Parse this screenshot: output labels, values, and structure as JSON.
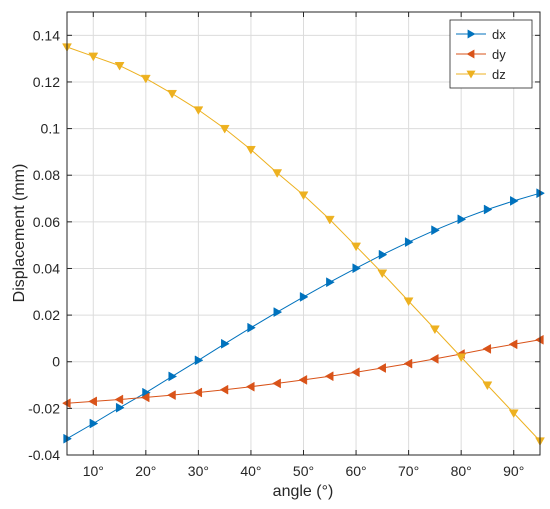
{
  "chart_data": {
    "type": "line",
    "title": "",
    "xlabel": "angle  (°)",
    "ylabel": "Displacement  (mm)",
    "xlim": [
      5,
      95
    ],
    "ylim": [
      -0.04,
      0.15
    ],
    "x_tick_values": [
      10,
      20,
      30,
      40,
      50,
      60,
      70,
      80,
      90
    ],
    "x_tick_labels": [
      "10°",
      "20°",
      "30°",
      "40°",
      "50°",
      "60°",
      "70°",
      "80°",
      "90°"
    ],
    "y_tick_values": [
      -0.04,
      -0.02,
      0,
      0.02,
      0.04,
      0.06,
      0.08,
      0.1,
      0.12,
      0.14
    ],
    "y_tick_labels": [
      "-0.04",
      "-0.02",
      "0",
      "0.02",
      "0.04",
      "0.06",
      "0.08",
      "0.1",
      "0.12",
      "0.14"
    ],
    "grid": true,
    "legend_position": "top-right",
    "x": [
      5,
      10,
      15,
      20,
      25,
      30,
      35,
      40,
      45,
      50,
      55,
      60,
      65,
      70,
      75,
      80,
      85,
      90,
      95
    ],
    "series": [
      {
        "name": "dx",
        "color": "#0072BD",
        "marker": "triangle-right",
        "values": [
          -0.033,
          -0.0265,
          -0.0197,
          -0.0133,
          -0.0063,
          0.0006,
          0.0077,
          0.0146,
          0.0213,
          0.0278,
          0.0341,
          0.0401,
          0.0459,
          0.0513,
          0.0564,
          0.0611,
          0.0653,
          0.069,
          0.0723
        ]
      },
      {
        "name": "dy",
        "color": "#D95319",
        "marker": "triangle-left",
        "values": [
          -0.0178,
          -0.017,
          -0.0162,
          -0.0153,
          -0.0143,
          -0.0132,
          -0.012,
          -0.0107,
          -0.0093,
          -0.0078,
          -0.0062,
          -0.0045,
          -0.0027,
          -0.0008,
          0.0012,
          0.0033,
          0.0055,
          0.0075,
          0.0094
        ]
      },
      {
        "name": "dz",
        "color": "#EDB120",
        "marker": "triangle-down",
        "values": [
          0.135,
          0.131,
          0.127,
          0.1215,
          0.115,
          0.108,
          0.1,
          0.091,
          0.081,
          0.0715,
          0.061,
          0.0495,
          0.038,
          0.026,
          0.014,
          0.002,
          -0.01,
          -0.022,
          -0.034
        ]
      }
    ]
  }
}
